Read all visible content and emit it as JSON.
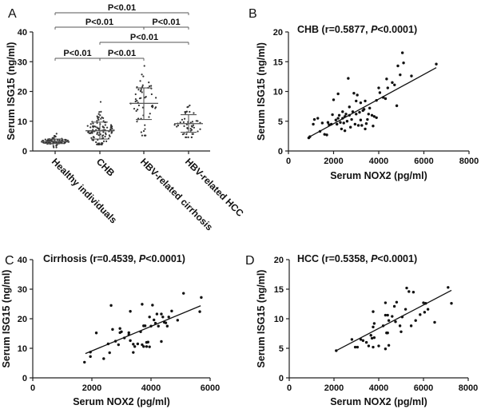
{
  "chart_data": [
    {
      "panel": "A",
      "type": "scatter",
      "subtype": "dot-plot-mean-sd",
      "ylabel": "Serum ISG15 (ng/ml)",
      "ylim": [
        0,
        40
      ],
      "yticks": [
        0,
        10,
        20,
        30,
        40
      ],
      "categories": [
        "Healthy individuals",
        "CHB",
        "HBV-related cirrhosis",
        "HBV-related HCC"
      ],
      "groups": [
        {
          "name": "Healthy individuals",
          "mean": 3.2,
          "sd_low": 2.5,
          "sd_high": 4.0,
          "min": 1.2,
          "max": 5.8,
          "n": 90
        },
        {
          "name": "CHB",
          "mean": 6.8,
          "sd_low": 4.0,
          "sd_high": 9.7,
          "min": 2.2,
          "max": 16.5,
          "n": 110
        },
        {
          "name": "HBV-related cirrhosis",
          "mean": 16.0,
          "sd_low": 10.6,
          "sd_high": 21.2,
          "min": 5.2,
          "max": 28.6,
          "n": 55
        },
        {
          "name": "HBV-related HCC",
          "mean": 9.2,
          "sd_low": 6.3,
          "sd_high": 12.2,
          "min": 4.6,
          "max": 15.3,
          "n": 48
        }
      ],
      "comparisons": [
        {
          "from": 0,
          "to": 3,
          "level": 4,
          "label": "P<0.01"
        },
        {
          "from": 0,
          "to": 2,
          "level": 3,
          "label": "P<0.01"
        },
        {
          "from": 2,
          "to": 3,
          "level": 3,
          "label": "P<0.01"
        },
        {
          "from": 1,
          "to": 3,
          "level": 2,
          "label": "P<0.01"
        },
        {
          "from": 0,
          "to": 1,
          "level": 1,
          "label": "P<0.01"
        },
        {
          "from": 1,
          "to": 2,
          "level": 1,
          "label": "P<0.01"
        }
      ]
    },
    {
      "panel": "B",
      "type": "scatter",
      "title_prefix": "CHB (r=0.5877, ",
      "title_p": "P",
      "title_suffix": "<0.0001)",
      "xlabel": "Serum NOX2 (pg/ml)",
      "ylabel": "Serum ISG15 (ng/ml)",
      "xlim": [
        0,
        8000
      ],
      "xticks": [
        0,
        2000,
        4000,
        6000,
        8000
      ],
      "ylim": [
        0,
        20
      ],
      "yticks": [
        0,
        5,
        10,
        15,
        20
      ],
      "fit": [
        [
          900,
          2.3
        ],
        [
          6550,
          14.0
        ]
      ],
      "points": [
        [
          900,
          2.2
        ],
        [
          950,
          2.4
        ],
        [
          1100,
          4.5
        ],
        [
          1150,
          5.3
        ],
        [
          1300,
          5.5
        ],
        [
          1400,
          3.3
        ],
        [
          1500,
          4.7
        ],
        [
          1600,
          2.8
        ],
        [
          1700,
          2.7
        ],
        [
          1750,
          4.8
        ],
        [
          1800,
          4.4
        ],
        [
          1900,
          4.5
        ],
        [
          1950,
          6.1
        ],
        [
          2000,
          8.6
        ],
        [
          2100,
          5.2
        ],
        [
          2150,
          4.5
        ],
        [
          2200,
          9.6
        ],
        [
          2200,
          5.5
        ],
        [
          2250,
          6.0
        ],
        [
          2300,
          4.8
        ],
        [
          2350,
          3.7
        ],
        [
          2400,
          5.5
        ],
        [
          2400,
          6.6
        ],
        [
          2450,
          4.7
        ],
        [
          2500,
          3.4
        ],
        [
          2500,
          5.8
        ],
        [
          2550,
          6.2
        ],
        [
          2600,
          5.0
        ],
        [
          2650,
          12.2
        ],
        [
          2700,
          6.0
        ],
        [
          2700,
          7.4
        ],
        [
          2750,
          4.0
        ],
        [
          2800,
          5.3
        ],
        [
          2850,
          6.6
        ],
        [
          2900,
          9.7
        ],
        [
          2950,
          4.5
        ],
        [
          3000,
          6.2
        ],
        [
          3000,
          8.4
        ],
        [
          3050,
          9.4
        ],
        [
          3100,
          4.3
        ],
        [
          3150,
          6.5
        ],
        [
          3200,
          8.1
        ],
        [
          3200,
          5.2
        ],
        [
          3250,
          4.3
        ],
        [
          3300,
          6.8
        ],
        [
          3350,
          7.0
        ],
        [
          3400,
          3.7
        ],
        [
          3400,
          8.4
        ],
        [
          3450,
          4.6
        ],
        [
          3500,
          5.3
        ],
        [
          3550,
          6.2
        ],
        [
          3600,
          7.2
        ],
        [
          3700,
          6.0
        ],
        [
          3750,
          4.2
        ],
        [
          3800,
          5.8
        ],
        [
          3900,
          5.6
        ],
        [
          3900,
          8.5
        ],
        [
          4000,
          10.6
        ],
        [
          4050,
          9.8
        ],
        [
          4200,
          9.0
        ],
        [
          4300,
          8.8
        ],
        [
          4350,
          12.1
        ],
        [
          4400,
          10.6
        ],
        [
          4600,
          11.5
        ],
        [
          4700,
          11.1
        ],
        [
          4800,
          7.6
        ],
        [
          4850,
          14.3
        ],
        [
          4950,
          12.8
        ],
        [
          5050,
          16.5
        ],
        [
          5100,
          14.8
        ],
        [
          5450,
          12.6
        ],
        [
          6550,
          14.6
        ]
      ]
    },
    {
      "panel": "C",
      "type": "scatter",
      "title_prefix": "Cirrhosis (r=0.4539, ",
      "title_p": "P",
      "title_suffix": "<0.0001)",
      "xlabel": "Serum NOX2 (pg/ml)",
      "ylabel": "Serum ISG15 (ng/ml)",
      "xlim": [
        0,
        6000
      ],
      "xticks": [
        0,
        2000,
        4000,
        6000
      ],
      "ylim": [
        0,
        40
      ],
      "yticks": [
        0,
        10,
        20,
        30,
        40
      ],
      "fit": [
        [
          1780,
          8.2
        ],
        [
          5680,
          24.4
        ]
      ],
      "points": [
        [
          1750,
          5.3
        ],
        [
          1950,
          7.2
        ],
        [
          1950,
          8.7
        ],
        [
          2150,
          15.2
        ],
        [
          2400,
          6.5
        ],
        [
          2550,
          11.5
        ],
        [
          2600,
          8.5
        ],
        [
          2650,
          24.5
        ],
        [
          2700,
          16.4
        ],
        [
          2800,
          12.4
        ],
        [
          2900,
          11.2
        ],
        [
          2950,
          16.7
        ],
        [
          2950,
          15.3
        ],
        [
          3000,
          15.6
        ],
        [
          3100,
          13.5
        ],
        [
          3250,
          15.3
        ],
        [
          3250,
          14.6
        ],
        [
          3300,
          22.5
        ],
        [
          3300,
          12.6
        ],
        [
          3400,
          11.4
        ],
        [
          3400,
          8.6
        ],
        [
          3450,
          10.6
        ],
        [
          3550,
          11.5
        ],
        [
          3650,
          15.6
        ],
        [
          3700,
          24.9
        ],
        [
          3700,
          11.2
        ],
        [
          3750,
          17.6
        ],
        [
          3750,
          10.6
        ],
        [
          3800,
          17.6
        ],
        [
          3850,
          10.6
        ],
        [
          3850,
          12.0
        ],
        [
          3900,
          12.1
        ],
        [
          3950,
          10.5
        ],
        [
          3950,
          20.6
        ],
        [
          4000,
          17.5
        ],
        [
          4050,
          24.6
        ],
        [
          4100,
          19.6
        ],
        [
          4150,
          18.5
        ],
        [
          4200,
          21.6
        ],
        [
          4250,
          17.5
        ],
        [
          4350,
          21.6
        ],
        [
          4350,
          12.3
        ],
        [
          4400,
          20.6
        ],
        [
          4450,
          18.8
        ],
        [
          4500,
          18.6
        ],
        [
          4550,
          17.5
        ],
        [
          4600,
          20.6
        ],
        [
          4700,
          22.6
        ],
        [
          4900,
          19.5
        ],
        [
          5100,
          28.6
        ],
        [
          5650,
          22.4
        ],
        [
          5700,
          27.2
        ]
      ]
    },
    {
      "panel": "D",
      "type": "scatter",
      "title_prefix": "HCC (r=0.5358, ",
      "title_p": "P",
      "title_suffix": "<0.0001)",
      "xlabel": "Serum NOX2 (pg/ml)",
      "ylabel": "Serum ISG15 (ng/ml)",
      "xlim": [
        0,
        8000
      ],
      "xticks": [
        0,
        2000,
        4000,
        6000,
        8000
      ],
      "ylim": [
        0,
        20
      ],
      "yticks": [
        0,
        5,
        10,
        15,
        20
      ],
      "fit": [
        [
          2100,
          4.6
        ],
        [
          7250,
          14.8
        ]
      ],
      "points": [
        [
          2100,
          4.6
        ],
        [
          2800,
          6.5
        ],
        [
          2950,
          5.2
        ],
        [
          3050,
          5.2
        ],
        [
          3200,
          6.5
        ],
        [
          3300,
          6.3
        ],
        [
          3450,
          6.0
        ],
        [
          3550,
          5.4
        ],
        [
          3650,
          7.2
        ],
        [
          3700,
          6.7
        ],
        [
          3750,
          8.6
        ],
        [
          3750,
          5.2
        ],
        [
          3750,
          11.2
        ],
        [
          3800,
          6.8
        ],
        [
          3800,
          9.2
        ],
        [
          4000,
          5.4
        ],
        [
          4200,
          8.8
        ],
        [
          4300,
          4.9
        ],
        [
          4300,
          12.7
        ],
        [
          4300,
          10.6
        ],
        [
          4350,
          7.6
        ],
        [
          4400,
          10.6
        ],
        [
          4400,
          7.6
        ],
        [
          4450,
          5.5
        ],
        [
          4450,
          9.7
        ],
        [
          4600,
          10.4
        ],
        [
          4700,
          12.1
        ],
        [
          4750,
          9.5
        ],
        [
          4800,
          12.8
        ],
        [
          4950,
          8.8
        ],
        [
          5000,
          7.8
        ],
        [
          5050,
          10.3
        ],
        [
          5200,
          11.6
        ],
        [
          5250,
          15.2
        ],
        [
          5350,
          14.6
        ],
        [
          5450,
          8.8
        ],
        [
          5550,
          14.5
        ],
        [
          5650,
          9.7
        ],
        [
          5850,
          10.7
        ],
        [
          6000,
          12.7
        ],
        [
          6050,
          11.1
        ],
        [
          6100,
          12.6
        ],
        [
          6200,
          11.6
        ],
        [
          6500,
          9.4
        ],
        [
          7100,
          15.3
        ],
        [
          7250,
          12.6
        ]
      ]
    }
  ]
}
